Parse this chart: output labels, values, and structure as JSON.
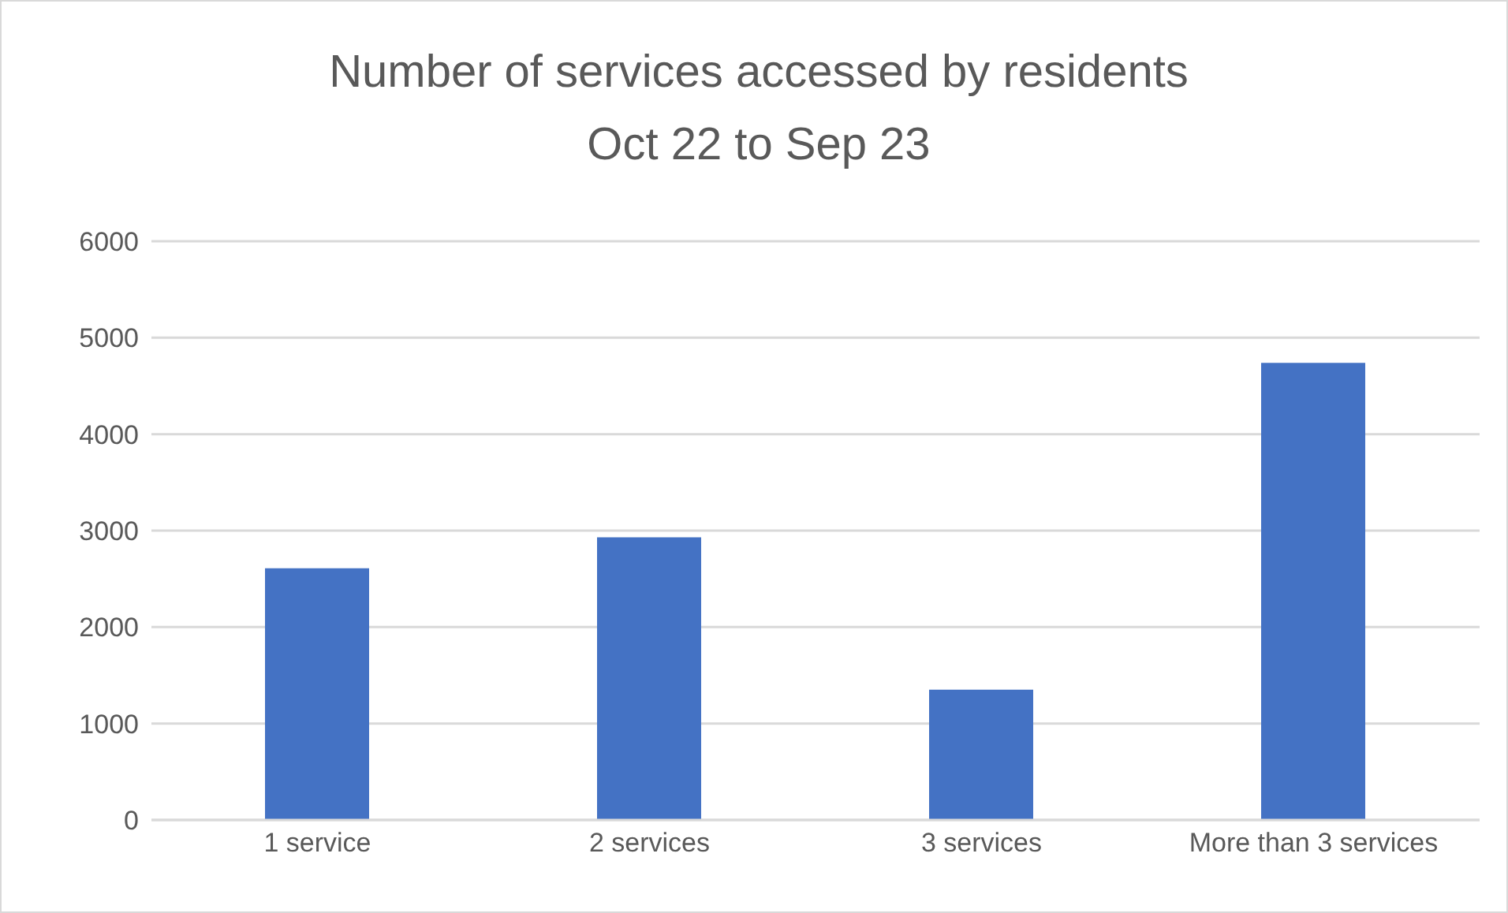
{
  "chart_data": {
    "type": "bar",
    "title": "Number of services accessed by residents Oct 22 to Sep 23",
    "categories": [
      "1 service",
      "2 services",
      "3 services",
      "More than 3 services"
    ],
    "values": [
      2610,
      2930,
      1350,
      4740
    ],
    "color": "#4472c4",
    "ylim": [
      0,
      6000
    ],
    "yticks": [
      0,
      1000,
      2000,
      3000,
      4000,
      5000,
      6000
    ],
    "grid": "y"
  }
}
